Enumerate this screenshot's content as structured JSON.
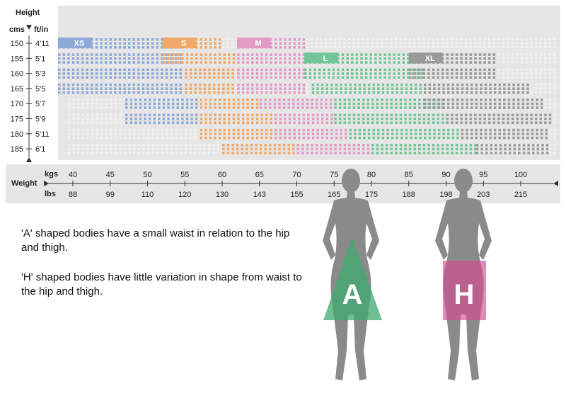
{
  "chart_data": {
    "type": "heatmap",
    "height_axis": {
      "title": "Height",
      "unit_left": "cms",
      "unit_right": "ft/in",
      "cms": [
        "150",
        "155",
        "160",
        "165",
        "170",
        "175",
        "180",
        "185"
      ],
      "ft_in": [
        "4'11",
        "5'1",
        "5'3",
        "5'5",
        "5'7",
        "5'9",
        "5'11",
        "6'1"
      ]
    },
    "weight_axis": {
      "title": "Weight",
      "unit_top": "kgs",
      "unit_bottom": "lbs",
      "kgs": [
        "40",
        "45",
        "50",
        "55",
        "60",
        "65",
        "70",
        "75",
        "80",
        "85",
        "90",
        "95",
        "100"
      ],
      "lbs": [
        "88",
        "99",
        "110",
        "120",
        "130",
        "143",
        "155",
        "165",
        "175",
        "188",
        "198",
        "203",
        "215"
      ]
    },
    "sizes": [
      {
        "label": "XS",
        "color": "#8fa9d6",
        "rows": [
          [
            38,
            55
          ],
          [
            38,
            55
          ],
          [
            38,
            55
          ],
          [
            38,
            55
          ],
          [
            47,
            57
          ],
          [
            47,
            57
          ],
          null,
          null
        ]
      },
      {
        "label": "S",
        "color": "#f0a868",
        "rows": [
          [
            52,
            60
          ],
          [
            52,
            62
          ],
          [
            55,
            62
          ],
          [
            55,
            62
          ],
          [
            57,
            65
          ],
          [
            57,
            67
          ],
          [
            57,
            70
          ],
          [
            60,
            70
          ]
        ]
      },
      {
        "label": "M",
        "color": "#e39ac4",
        "rows": [
          [
            62,
            71
          ],
          [
            62,
            71
          ],
          [
            62,
            71
          ],
          [
            62,
            71
          ],
          [
            65,
            75
          ],
          [
            67,
            75
          ],
          [
            67,
            77
          ],
          [
            70,
            80
          ]
        ]
      },
      {
        "label": "L",
        "color": "#72c596",
        "rows": [
          null,
          [
            71,
            87
          ],
          [
            71,
            87
          ],
          [
            72,
            87
          ],
          [
            75,
            90
          ],
          [
            75,
            90
          ],
          [
            77,
            92
          ],
          [
            80,
            94
          ]
        ]
      },
      {
        "label": "XL",
        "color": "#9b9a9a",
        "rows": [
          null,
          [
            85,
            97
          ],
          [
            85,
            97
          ],
          [
            87,
            101
          ],
          [
            87,
            103
          ],
          [
            90,
            104
          ],
          [
            92,
            104
          ],
          [
            94,
            104
          ]
        ]
      }
    ]
  },
  "text": {
    "a_shape": "'A' shaped bodies have a small waist in relation to the hip and thigh.",
    "h_shape": "'H' shaped bodies have little variation in shape from waist to the hip and thigh."
  },
  "figures": {
    "a": {
      "letter": "A",
      "color": "#3daa6e"
    },
    "h": {
      "letter": "H",
      "color": "#d64b93"
    }
  },
  "colors": {
    "panel": "#e6e6e6",
    "empty_dot": "#f2f2f2",
    "silhouette": "#8a8a8a"
  }
}
